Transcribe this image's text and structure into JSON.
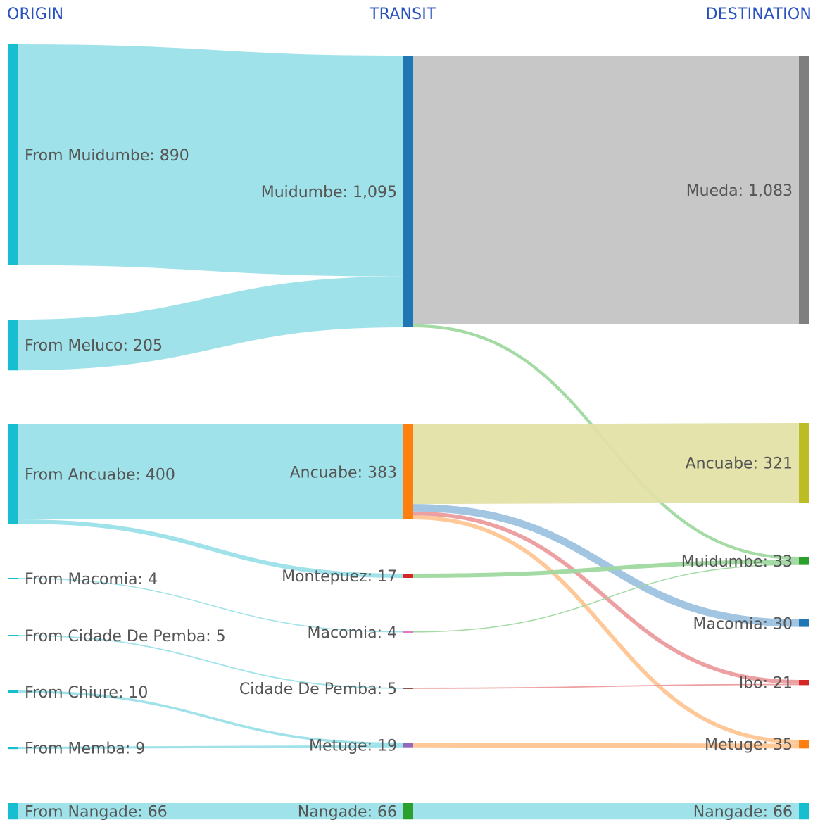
{
  "headers": {
    "origin": "ORIGIN",
    "transit": "TRANSIT",
    "destination": "DESTINATION"
  },
  "chart_data": {
    "type": "sankey",
    "columns": [
      "ORIGIN",
      "TRANSIT",
      "DESTINATION"
    ],
    "nodes": [
      {
        "id": "o_muidumbe",
        "column": 0,
        "label": "From Muidumbe: 890",
        "value": 890,
        "color": "#17becf"
      },
      {
        "id": "o_meluco",
        "column": 0,
        "label": "From Meluco: 205",
        "value": 205,
        "color": "#17becf"
      },
      {
        "id": "o_ancuabe",
        "column": 0,
        "label": "From Ancuabe: 400",
        "value": 400,
        "color": "#17becf"
      },
      {
        "id": "o_macomia",
        "column": 0,
        "label": "From Macomia: 4",
        "value": 4,
        "color": "#17becf"
      },
      {
        "id": "o_pemba",
        "column": 0,
        "label": "From Cidade De Pemba: 5",
        "value": 5,
        "color": "#17becf"
      },
      {
        "id": "o_chiure",
        "column": 0,
        "label": "From Chiure: 10",
        "value": 10,
        "color": "#17becf"
      },
      {
        "id": "o_memba",
        "column": 0,
        "label": "From Memba: 9",
        "value": 9,
        "color": "#17becf"
      },
      {
        "id": "o_nangade",
        "column": 0,
        "label": "From Nangade: 66",
        "value": 66,
        "color": "#17becf"
      },
      {
        "id": "t_muidumbe",
        "column": 1,
        "label": "Muidumbe: 1,095",
        "value": 1095,
        "color": "#1f77b4"
      },
      {
        "id": "t_ancuabe",
        "column": 1,
        "label": "Ancuabe: 383",
        "value": 383,
        "color": "#ff7f0e"
      },
      {
        "id": "t_montepuez",
        "column": 1,
        "label": "Montepuez: 17",
        "value": 17,
        "color": "#d62728"
      },
      {
        "id": "t_macomia",
        "column": 1,
        "label": "Macomia: 4",
        "value": 4,
        "color": "#e377c2"
      },
      {
        "id": "t_pemba",
        "column": 1,
        "label": "Cidade De Pemba: 5",
        "value": 5,
        "color": "#8c564b"
      },
      {
        "id": "t_metuge",
        "column": 1,
        "label": "Metuge: 19",
        "value": 19,
        "color": "#9467bd"
      },
      {
        "id": "t_nangade",
        "column": 1,
        "label": "Nangade: 66",
        "value": 66,
        "color": "#2ca02c"
      },
      {
        "id": "d_mueda",
        "column": 2,
        "label": "Mueda: 1,083",
        "value": 1083,
        "color": "#7f7f7f"
      },
      {
        "id": "d_ancuabe",
        "column": 2,
        "label": "Ancuabe: 321",
        "value": 321,
        "color": "#bcbd22"
      },
      {
        "id": "d_muidumbe",
        "column": 2,
        "label": "Muidumbe: 33",
        "value": 33,
        "color": "#2ca02c"
      },
      {
        "id": "d_macomia",
        "column": 2,
        "label": "Macomia: 30",
        "value": 30,
        "color": "#1f77b4"
      },
      {
        "id": "d_ibo",
        "column": 2,
        "label": "Ibo: 21",
        "value": 21,
        "color": "#d62728"
      },
      {
        "id": "d_metuge",
        "column": 2,
        "label": "Metuge: 35",
        "value": 35,
        "color": "#ff7f0e"
      },
      {
        "id": "d_nangade",
        "column": 2,
        "label": "Nangade: 66",
        "value": 66,
        "color": "#17becf"
      }
    ],
    "links": [
      {
        "source": "o_muidumbe",
        "target": "t_muidumbe",
        "value": 890,
        "color": "#9ae0e8"
      },
      {
        "source": "o_meluco",
        "target": "t_muidumbe",
        "value": 205,
        "color": "#9ae0e8"
      },
      {
        "source": "o_ancuabe",
        "target": "t_ancuabe",
        "value": 383,
        "color": "#9ae0e8"
      },
      {
        "source": "o_ancuabe",
        "target": "t_montepuez",
        "value": 17,
        "color": "#9ae0e8"
      },
      {
        "source": "o_macomia",
        "target": "t_macomia",
        "value": 4,
        "color": "#9ae0e8"
      },
      {
        "source": "o_pemba",
        "target": "t_pemba",
        "value": 5,
        "color": "#9ae0e8"
      },
      {
        "source": "o_chiure",
        "target": "t_metuge",
        "value": 10,
        "color": "#9ae0e8"
      },
      {
        "source": "o_memba",
        "target": "t_metuge",
        "value": 9,
        "color": "#9ae0e8"
      },
      {
        "source": "o_nangade",
        "target": "t_nangade",
        "value": 66,
        "color": "#9ae0e8"
      },
      {
        "source": "t_muidumbe",
        "target": "d_mueda",
        "value": 1083,
        "color": "#c4c4c4"
      },
      {
        "source": "t_muidumbe",
        "target": "d_muidumbe",
        "value": 12,
        "color": "#9fd89f"
      },
      {
        "source": "t_ancuabe",
        "target": "d_ancuabe",
        "value": 321,
        "color": "#e1e1a7"
      },
      {
        "source": "t_ancuabe",
        "target": "d_macomia",
        "value": 30,
        "color": "#9dc2e0"
      },
      {
        "source": "t_ancuabe",
        "target": "d_ibo",
        "value": 16,
        "color": "#eb9b9c"
      },
      {
        "source": "t_ancuabe",
        "target": "d_metuge",
        "value": 16,
        "color": "#ffc592"
      },
      {
        "source": "t_montepuez",
        "target": "d_muidumbe",
        "value": 17,
        "color": "#9fd89f"
      },
      {
        "source": "t_macomia",
        "target": "d_muidumbe",
        "value": 4,
        "color": "#9fd89f"
      },
      {
        "source": "t_pemba",
        "target": "d_ibo",
        "value": 5,
        "color": "#eb9b9c"
      },
      {
        "source": "t_metuge",
        "target": "d_metuge",
        "value": 19,
        "color": "#ffc592"
      },
      {
        "source": "t_nangade",
        "target": "d_nangade",
        "value": 66,
        "color": "#9ae0e8"
      }
    ]
  }
}
